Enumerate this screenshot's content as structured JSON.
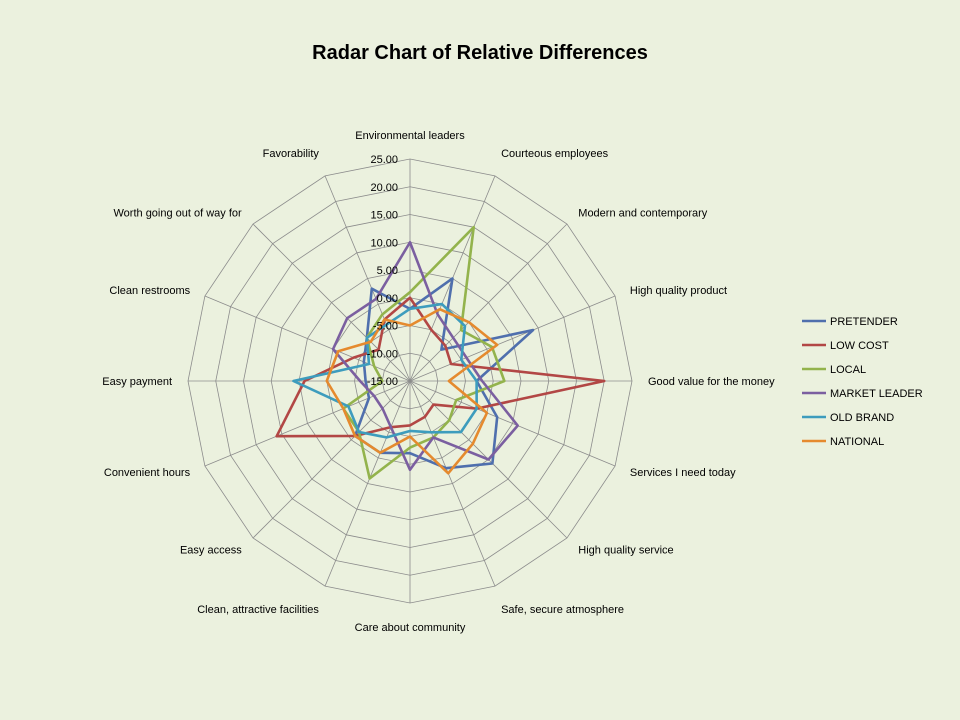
{
  "chart_data": {
    "type": "radar",
    "title": "Radar Chart of Relative Differences",
    "categories": [
      "Environmental leaders",
      "Courteous employees",
      "Modern and contemporary",
      "High quality product",
      "Good value for the money",
      "Services I need today",
      "High quality service",
      "Safe, secure atmosphere",
      "Care about community",
      "Clean, attractive facilities",
      "Easy access",
      "Convenient hours",
      "Easy payment",
      "Clean restrooms",
      "Worth going out of way for",
      "Favorability"
    ],
    "rlim": [
      -15,
      25
    ],
    "ticks": [
      "-15.00",
      "-10.00",
      "-5.00",
      "0.00",
      "5.00",
      "10.00",
      "15.00",
      "20.00",
      "25.00"
    ],
    "tick_values": [
      -15,
      -10,
      -5,
      0,
      5,
      10,
      15,
      20,
      25
    ],
    "grid": true,
    "legend_position": "right",
    "series": [
      {
        "name": "PRETENDER",
        "color": "#4f6fad",
        "values": [
          -2,
          5,
          -7,
          9,
          -3,
          2,
          6,
          2,
          -2,
          -1,
          -1,
          -7,
          -7,
          -6,
          -4,
          3
        ]
      },
      {
        "name": "LOW COST",
        "color": "#b24745",
        "values": [
          0,
          -5,
          -6,
          -7,
          20,
          -2,
          -9,
          -8,
          -7,
          -6,
          -1,
          11,
          4,
          -4,
          -7,
          -3
        ]
      },
      {
        "name": "LOCAL",
        "color": "#93b34c",
        "values": [
          1,
          15,
          -2,
          1,
          2,
          -6,
          -5,
          -4,
          -3,
          4,
          -2,
          -2,
          -10,
          -8,
          -4,
          -2
        ]
      },
      {
        "name": "MARKET LEADER",
        "color": "#7b5fa0",
        "values": [
          10,
          -2,
          -4,
          -4,
          -2,
          6,
          5,
          -4,
          1,
          -6,
          -8,
          -8,
          -6,
          0,
          1,
          1
        ]
      },
      {
        "name": "OLD BRAND",
        "color": "#3d9cbd",
        "values": [
          -2,
          0,
          -1,
          -5,
          -3,
          -2,
          -2,
          -5,
          -6,
          -4,
          -2,
          -3,
          6,
          -7,
          -4,
          -4
        ]
      },
      {
        "name": "NATIONAL",
        "color": "#e58a2e",
        "values": [
          -5,
          -1,
          0,
          2,
          -8,
          0,
          1,
          3,
          -5,
          -1,
          -1,
          -2,
          0,
          -1,
          -5,
          -3
        ]
      }
    ]
  }
}
